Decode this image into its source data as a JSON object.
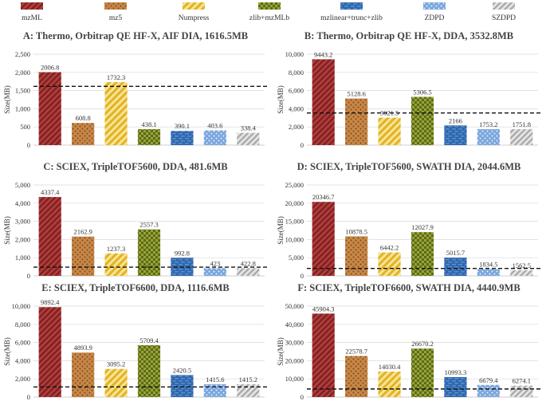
{
  "legend": [
    {
      "name": "mzML",
      "pattern": "diag",
      "color": "#8e2a2a",
      "bg": "#b53d3d"
    },
    {
      "name": "mz5",
      "pattern": "dots",
      "color": "#9a6128",
      "bg": "#c88848"
    },
    {
      "name": "Numpress",
      "pattern": "diag-light",
      "color": "#e2b420",
      "bg": "#f3d56a"
    },
    {
      "name": "zlib+mzMLb",
      "pattern": "check",
      "color": "#6f7a1e",
      "bg": "#97a43a"
    },
    {
      "name": "mzlinear+trunc+zlib",
      "pattern": "dash",
      "color": "#2b62a6",
      "bg": "#4c82c4"
    },
    {
      "name": "ZDPD",
      "pattern": "dots-blue",
      "color": "#5d8fcf",
      "bg": "#8fb6e6"
    },
    {
      "name": "SZDPD",
      "pattern": "diag-gray",
      "color": "#9e9e9e",
      "bg": "#cfcfcf"
    }
  ],
  "chart_data": [
    {
      "id": "A",
      "type": "bar",
      "title": "A: Thermo, Orbitrap QE HF-X, AIF DIA, 1616.5MB",
      "ylabel": "Size(MB)",
      "ylim": [
        0,
        2500
      ],
      "yticks": [
        0,
        500,
        1000,
        1500,
        2000,
        2500
      ],
      "ytick_labels": [
        "0",
        "500",
        "1,000",
        "1,500",
        "2,000",
        "2,500"
      ],
      "reference": 1616.5,
      "values": [
        2006.8,
        608.8,
        1732.3,
        438.1,
        390.1,
        403.6,
        338.4
      ],
      "labels": [
        "2006.8",
        "608.8",
        "1732.3",
        "438.1",
        "390.1",
        "403.6",
        "338.4"
      ]
    },
    {
      "id": "B",
      "type": "bar",
      "title": "B: Thermo, Orbitrap QE HF-X, DDA, 3532.8MB",
      "ylabel": "Size(MB)",
      "ylim": [
        0,
        10000
      ],
      "yticks": [
        0,
        2000,
        4000,
        6000,
        8000,
        10000
      ],
      "ytick_labels": [
        "0",
        "2,000",
        "4,000",
        "6,000",
        "8,000",
        "10,000"
      ],
      "reference": 3532.8,
      "values": [
        9443.2,
        5128.6,
        3021.5,
        5306.5,
        2166,
        1753.2,
        1751.8
      ],
      "labels": [
        "9443.2",
        "5128.6",
        "3021.5",
        "5306.5",
        "2166",
        "1753.2",
        "1751.8"
      ]
    },
    {
      "id": "C",
      "type": "bar",
      "title": "C: SCIEX, TripleTOF5600, DDA, 481.6MB",
      "ylabel": "Size(MB)",
      "ylim": [
        0,
        5000
      ],
      "yticks": [
        0,
        1000,
        2000,
        3000,
        4000,
        5000
      ],
      "ytick_labels": [
        "0",
        "1,000",
        "2,000",
        "3,000",
        "4,000",
        "5,000"
      ],
      "reference": 481.6,
      "values": [
        4337.4,
        2162.9,
        1237.3,
        2557.3,
        992.8,
        423,
        422.8
      ],
      "labels": [
        "4337.4",
        "2162.9",
        "1237.3",
        "2557.3",
        "992.8",
        "423",
        "422.8"
      ]
    },
    {
      "id": "D",
      "type": "bar",
      "title": "D: SCIEX, TripleTOF5600, SWATH DIA, 2044.6MB",
      "ylabel": "Size(MB)",
      "ylim": [
        0,
        25000
      ],
      "yticks": [
        0,
        5000,
        10000,
        15000,
        20000,
        25000
      ],
      "ytick_labels": [
        "0",
        "5,000",
        "10,000",
        "15,000",
        "20,000",
        "25,000"
      ],
      "reference": 2044.6,
      "values": [
        20346.7,
        10878.5,
        6442.2,
        12027.9,
        5015.7,
        1834.5,
        1562.5
      ],
      "labels": [
        "20346.7",
        "10878.5",
        "6442.2",
        "12027.9",
        "5015.7",
        "1834.5",
        "1562.5"
      ]
    },
    {
      "id": "E",
      "type": "bar",
      "title": "E: SCIEX, TripleTOF6600, DDA, 1116.6MB",
      "ylabel": "Size(MB)",
      "ylim": [
        0,
        10000
      ],
      "yticks": [
        0,
        2000,
        4000,
        6000,
        8000,
        10000
      ],
      "ytick_labels": [
        "0",
        "2,000",
        "4,000",
        "6,000",
        "8,000",
        "10,000"
      ],
      "reference": 1116.6,
      "values": [
        9892.4,
        4893.9,
        3095.2,
        5709.4,
        2420.5,
        1415.6,
        1415.2
      ],
      "labels": [
        "9892.4",
        "4893.9",
        "3095.2",
        "5709.4",
        "2420.5",
        "1415.6",
        "1415.2"
      ]
    },
    {
      "id": "F",
      "type": "bar",
      "title": "F: SCIEX, TripleTOF6600, SWATH DIA, 4440.9MB",
      "ylabel": "Size(MB)",
      "ylim": [
        0,
        50000
      ],
      "yticks": [
        0,
        10000,
        20000,
        30000,
        40000,
        50000
      ],
      "ytick_labels": [
        "0",
        "10,000",
        "20,000",
        "30,000",
        "40,000",
        "50,000"
      ],
      "reference": 4440.9,
      "values": [
        45904.3,
        22578.7,
        14030.4,
        26670.2,
        10993.3,
        6679.4,
        6274.1
      ],
      "labels": [
        "45904.3",
        "22578.7",
        "14030.4",
        "26670.2",
        "10993.3",
        "6679.4",
        "6274.1"
      ]
    }
  ]
}
